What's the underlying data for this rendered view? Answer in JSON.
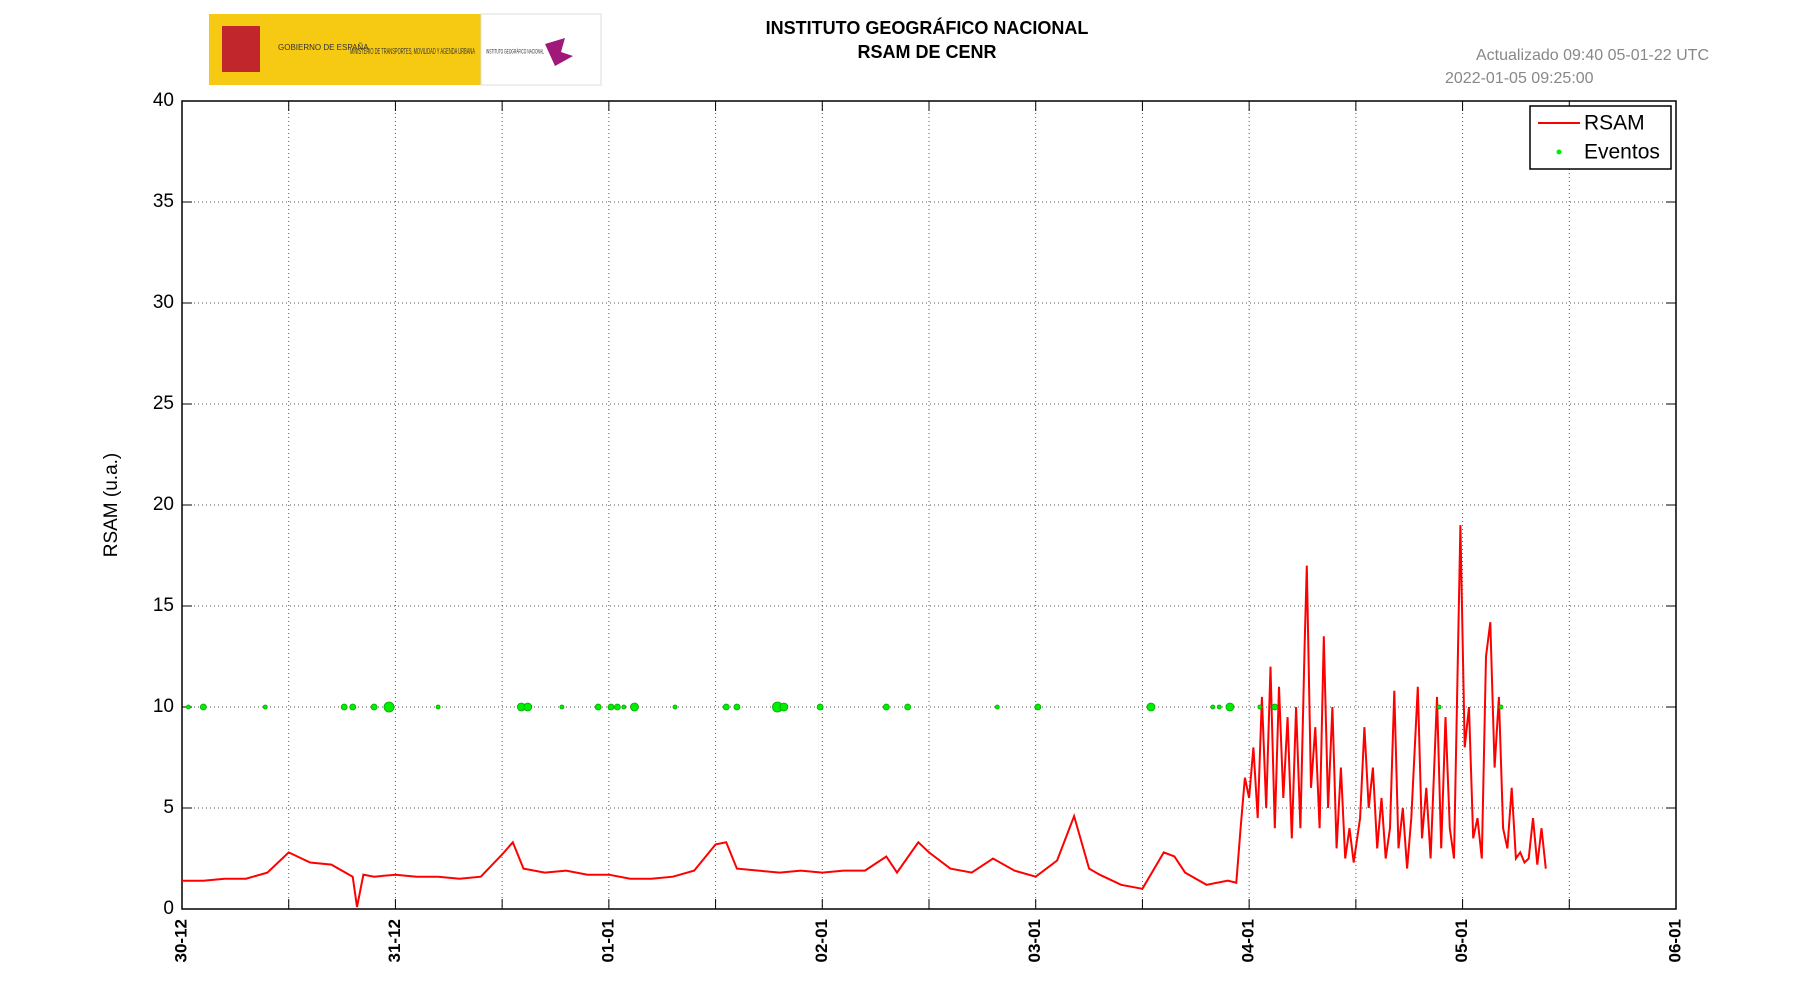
{
  "header": {
    "gov": "GOBIERNO DE ESPAÑA",
    "ministry": "MINISTERIO DE TRANSPORTES, MOVILIDAD Y AGENDA URBANA",
    "ign": "INSTITUTO GEOGRÁFICO NACIONAL"
  },
  "chart_data": {
    "type": "line",
    "title": "INSTITUTO GEOGRÁFICO NACIONAL",
    "subtitle": "RSAM DE CENR",
    "updated": "Actualizado 09:40 05-01-22 UTC",
    "timestamp": "2022-01-05 09:25:00",
    "ylabel": "RSAM (u.a.)",
    "xlim": [
      0,
      7
    ],
    "ylim": [
      0,
      40
    ],
    "xticks": [
      {
        "value": 0,
        "label": "30-12"
      },
      {
        "value": 1,
        "label": "31-12"
      },
      {
        "value": 2,
        "label": "01-01"
      },
      {
        "value": 3,
        "label": "02-01"
      },
      {
        "value": 4,
        "label": "03-01"
      },
      {
        "value": 5,
        "label": "04-01"
      },
      {
        "value": 6,
        "label": "05-01"
      },
      {
        "value": 7,
        "label": "06-01"
      }
    ],
    "xminorticks": [
      0.5,
      1.5,
      2.5,
      3.5,
      4.5,
      5.5,
      6.5
    ],
    "yticks": [
      0,
      5,
      10,
      15,
      20,
      25,
      30,
      35,
      40
    ],
    "grid": true,
    "legend": "upper right",
    "series": [
      {
        "name": "RSAM",
        "type": "line",
        "color": "#ff0000",
        "x": [
          0,
          0.1,
          0.2,
          0.3,
          0.4,
          0.5,
          0.6,
          0.7,
          0.8,
          0.82,
          0.85,
          0.9,
          1.0,
          1.1,
          1.2,
          1.3,
          1.4,
          1.5,
          1.55,
          1.6,
          1.7,
          1.8,
          1.9,
          2.0,
          2.1,
          2.2,
          2.3,
          2.4,
          2.5,
          2.55,
          2.6,
          2.7,
          2.8,
          2.9,
          3.0,
          3.1,
          3.2,
          3.3,
          3.35,
          3.45,
          3.5,
          3.6,
          3.7,
          3.8,
          3.9,
          4.0,
          4.1,
          4.18,
          4.25,
          4.3,
          4.4,
          4.5,
          4.6,
          4.65,
          4.7,
          4.8,
          4.9,
          4.94,
          4.96,
          4.98,
          5.0,
          5.02,
          5.04,
          5.06,
          5.08,
          5.1,
          5.12,
          5.14,
          5.16,
          5.18,
          5.2,
          5.22,
          5.24,
          5.26,
          5.27,
          5.29,
          5.31,
          5.33,
          5.35,
          5.37,
          5.39,
          5.41,
          5.43,
          5.45,
          5.47,
          5.49,
          5.52,
          5.54,
          5.56,
          5.58,
          5.6,
          5.62,
          5.64,
          5.66,
          5.68,
          5.7,
          5.72,
          5.74,
          5.76,
          5.79,
          5.81,
          5.83,
          5.85,
          5.88,
          5.9,
          5.92,
          5.94,
          5.96,
          5.99,
          6.01,
          6.03,
          6.05,
          6.07,
          6.09,
          6.11,
          6.13,
          6.15,
          6.17,
          6.19,
          6.21,
          6.23,
          6.25,
          6.27,
          6.29,
          6.31,
          6.33,
          6.35,
          6.37,
          6.39
        ],
        "values": [
          1.4,
          1.4,
          1.5,
          1.5,
          1.8,
          2.8,
          2.3,
          2.2,
          1.6,
          0.1,
          1.7,
          1.6,
          1.7,
          1.6,
          1.6,
          1.5,
          1.6,
          2.7,
          3.3,
          2.0,
          1.8,
          1.9,
          1.7,
          1.7,
          1.5,
          1.5,
          1.6,
          1.9,
          3.2,
          3.3,
          2.0,
          1.9,
          1.8,
          1.9,
          1.8,
          1.9,
          1.9,
          2.6,
          1.8,
          3.3,
          2.8,
          2.0,
          1.8,
          2.5,
          1.9,
          1.6,
          2.4,
          4.6,
          2.0,
          1.7,
          1.2,
          1.0,
          2.8,
          2.6,
          1.8,
          1.2,
          1.4,
          1.3,
          4.0,
          6.5,
          5.5,
          8.0,
          4.5,
          10.5,
          5.0,
          12.0,
          4.0,
          11.0,
          5.5,
          9.5,
          3.5,
          10.0,
          4.0,
          13.0,
          17.0,
          6.0,
          9.0,
          4.0,
          13.5,
          5.0,
          10.0,
          3.0,
          7.0,
          2.5,
          4.0,
          2.3,
          4.5,
          9.0,
          5.0,
          7.0,
          3.0,
          5.5,
          2.5,
          4.0,
          10.8,
          3.0,
          5.0,
          2.0,
          4.5,
          11.0,
          3.5,
          6.0,
          2.5,
          10.5,
          3.0,
          9.5,
          4.0,
          2.5,
          19.0,
          8.0,
          10.0,
          3.5,
          4.5,
          2.5,
          12.5,
          14.2,
          7.0,
          10.5,
          4.0,
          3.0,
          6.0,
          2.5,
          2.8,
          2.3,
          2.5,
          4.5,
          2.2,
          4.0,
          2.0
        ]
      },
      {
        "name": "Eventos",
        "type": "scatter",
        "color": "#00ee00",
        "x": [
          0.03,
          0.1,
          0.39,
          0.76,
          0.8,
          0.9,
          0.97,
          1.2,
          1.59,
          1.62,
          1.78,
          1.95,
          2.01,
          2.04,
          2.07,
          2.12,
          2.31,
          2.55,
          2.6,
          2.79,
          2.82,
          2.99,
          3.3,
          3.4,
          3.82,
          4.01,
          4.54,
          4.83,
          4.86,
          4.91,
          5.05,
          5.12,
          5.89,
          6.18
        ],
        "values": [
          10,
          10,
          10,
          10,
          10,
          10,
          10,
          10,
          10,
          10,
          10,
          10,
          10,
          10,
          10,
          10,
          10,
          10,
          10,
          10,
          10,
          10,
          10,
          10,
          10,
          10,
          10,
          10,
          10,
          10,
          10,
          10,
          10,
          10
        ],
        "sizes": [
          2,
          3,
          2,
          3,
          3,
          3,
          5,
          2,
          4,
          4,
          2,
          3,
          3,
          3,
          2,
          4,
          2,
          3,
          3,
          5,
          4,
          3,
          3,
          3,
          2,
          3,
          4,
          2,
          2,
          4,
          2,
          3,
          2,
          2
        ]
      }
    ]
  }
}
